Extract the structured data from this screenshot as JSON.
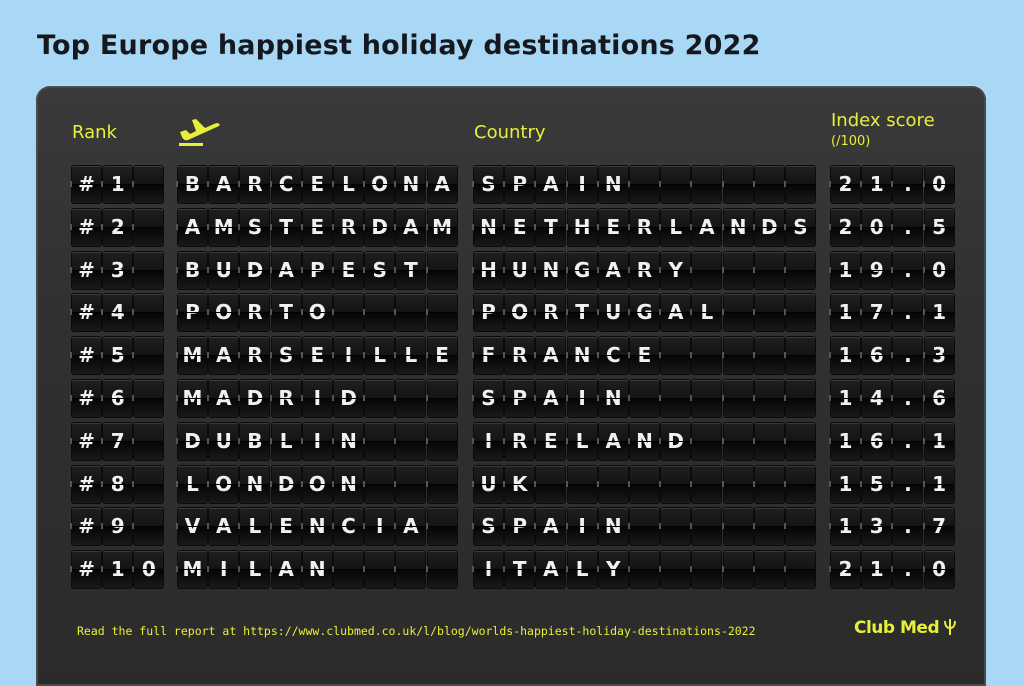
{
  "title": "Top Europe happiest holiday destinations 2022",
  "headers": {
    "rank": "Rank",
    "country": "Country",
    "index": "Index score",
    "index_sub": "(/100)"
  },
  "icons": {
    "departure": "airplane-departure-icon",
    "brand_logo": "trident-icon"
  },
  "colors": {
    "accent": "#e8ef3a",
    "background": "#a9d8f6",
    "board": "#2f2f2f",
    "flap_text": "#f1f1f1"
  },
  "rows": [
    {
      "rank": "#1",
      "city": "BARCELONA",
      "country": "SPAIN",
      "score": "21.0"
    },
    {
      "rank": "#2",
      "city": "AMSTERDAM",
      "country": "NETHERLANDS",
      "score": "20.5"
    },
    {
      "rank": "#3",
      "city": "BUDAPEST",
      "country": "HUNGARY",
      "score": "19.0"
    },
    {
      "rank": "#4",
      "city": "PORTO",
      "country": "PORTUGAL",
      "score": "17.1"
    },
    {
      "rank": "#5",
      "city": "MARSEILLE",
      "country": "FRANCE",
      "score": "16.3"
    },
    {
      "rank": "#6",
      "city": "MADRID",
      "country": "SPAIN",
      "score": "14.6"
    },
    {
      "rank": "#7",
      "city": "DUBLIN",
      "country": "IRELAND",
      "score": "16.1"
    },
    {
      "rank": "#8",
      "city": "LONDON",
      "country": "UK",
      "score": "15.1"
    },
    {
      "rank": "#9",
      "city": "VALENCIA",
      "country": "SPAIN",
      "score": "13.7"
    },
    {
      "rank": "#10",
      "city": "MILAN",
      "country": "ITALY",
      "score": "21.0"
    }
  ],
  "footer": "Read the full report at https://www.clubmed.co.uk/l/blog/worlds-happiest-holiday-destinations-2022",
  "brand": "Club Med"
}
